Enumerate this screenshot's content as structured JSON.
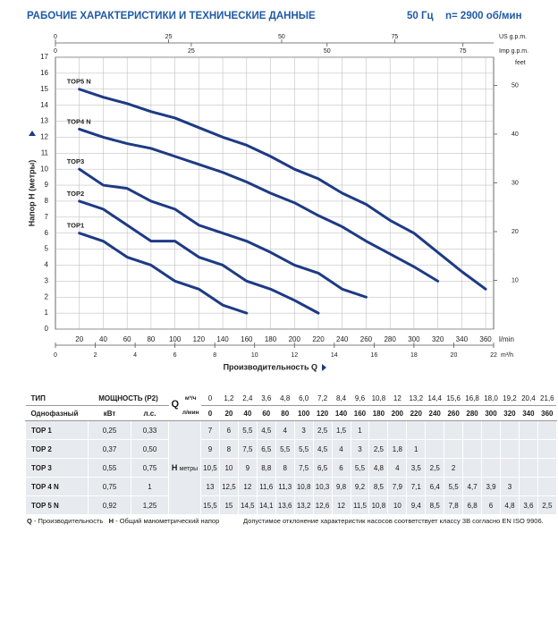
{
  "header": {
    "title": "РАБОЧИЕ ХАРАКТЕРИСТИКИ И ТЕХНИЧЕСКИЕ ДАННЫЕ",
    "frequency": "50 Гц",
    "speed": "n= 2900 об/мин"
  },
  "chart_data": {
    "type": "line",
    "x_label": "Производительность Q",
    "y_label": "Напор H (метры)",
    "x_unit": "l/min",
    "x": [
      20,
      40,
      60,
      80,
      100,
      120,
      140,
      160,
      180,
      200,
      220,
      240,
      260,
      280,
      300,
      320,
      340,
      360
    ],
    "xlim": [
      0,
      366.67
    ],
    "xticks": [
      20,
      40,
      60,
      80,
      100,
      120,
      140,
      160,
      180,
      200,
      220,
      240,
      260,
      280,
      300,
      320,
      340,
      360
    ],
    "ylim": [
      0,
      17
    ],
    "yticks": [
      0,
      1,
      2,
      3,
      4,
      5,
      6,
      7,
      8,
      9,
      10,
      11,
      12,
      13,
      14,
      15,
      16,
      17
    ],
    "grid": true,
    "series": [
      {
        "name": "TOP1",
        "color": "#1d3a84",
        "values": [
          6,
          5.5,
          4.5,
          4,
          3,
          2.5,
          1.5,
          1,
          null,
          null,
          null,
          null,
          null,
          null,
          null,
          null,
          null,
          null
        ]
      },
      {
        "name": "TOP2",
        "color": "#1d3a84",
        "values": [
          8,
          7.5,
          6.5,
          5.5,
          5.5,
          4.5,
          4,
          3,
          2.5,
          1.8,
          1,
          null,
          null,
          null,
          null,
          null,
          null,
          null
        ]
      },
      {
        "name": "TOP3",
        "color": "#1d3a84",
        "values": [
          10,
          9,
          8.8,
          8,
          7.5,
          6.5,
          6,
          5.5,
          4.8,
          4,
          3.5,
          2.5,
          2,
          null,
          null,
          null,
          null,
          null
        ]
      },
      {
        "name": "TOP4 N",
        "color": "#1d3a84",
        "values": [
          12.5,
          12,
          11.6,
          11.3,
          10.8,
          10.3,
          9.8,
          9.2,
          8.5,
          7.9,
          7.1,
          6.4,
          5.5,
          4.7,
          3.9,
          3,
          null,
          null
        ]
      },
      {
        "name": "TOP5 N",
        "color": "#1d3a84",
        "values": [
          15,
          14.5,
          14.1,
          13.6,
          13.2,
          12.6,
          12,
          11.5,
          10.8,
          10,
          9.4,
          8.5,
          7.8,
          6.8,
          6,
          4.8,
          3.6,
          2.5
        ]
      }
    ],
    "m3h_axis": {
      "label": "m³/h",
      "lim": [
        0,
        22
      ],
      "ticks": [
        0,
        2,
        4,
        6,
        8,
        10,
        12,
        14,
        16,
        18,
        20,
        22
      ]
    },
    "us_gpm_axis": {
      "label": "US g.p.m.",
      "lim": [
        0,
        96.86
      ],
      "ticks": [
        0,
        25,
        50,
        75
      ]
    },
    "imp_gpm_axis": {
      "label": "Imp g.p.m.",
      "lim": [
        0,
        80.65
      ],
      "ticks": [
        0,
        25,
        50,
        75
      ]
    },
    "feet_axis": {
      "label": "feet",
      "lim": [
        0,
        55.77
      ],
      "ticks": [
        10,
        20,
        30,
        40,
        50
      ]
    }
  },
  "table": {
    "type_header": "ТИП",
    "power_header": "МОЩНОСТЬ (P2)",
    "q_label": "Q",
    "q_unit_m3h": "м³/ч",
    "q_unit_lmin": "л/мин",
    "phase_label": "Однофазный",
    "kw": "кВт",
    "hp": "л.с.",
    "h_label": "H",
    "h_unit": "метры",
    "q_m3h": [
      "0",
      "1,2",
      "2,4",
      "3,6",
      "4,8",
      "6,0",
      "7,2",
      "8,4",
      "9,6",
      "10,8",
      "12",
      "13,2",
      "14,4",
      "15,6",
      "16,8",
      "18,0",
      "19,2",
      "20,4",
      "21,6"
    ],
    "q_lmin": [
      "0",
      "20",
      "40",
      "60",
      "80",
      "100",
      "120",
      "140",
      "160",
      "180",
      "200",
      "220",
      "240",
      "260",
      "280",
      "300",
      "320",
      "340",
      "360"
    ],
    "rows": [
      {
        "model": "TOP 1",
        "kw": "0,25",
        "hp": "0,33",
        "h": [
          "7",
          "6",
          "5,5",
          "4,5",
          "4",
          "3",
          "2,5",
          "1,5",
          "1"
        ]
      },
      {
        "model": "TOP 2",
        "kw": "0,37",
        "hp": "0,50",
        "h": [
          "9",
          "8",
          "7,5",
          "6,5",
          "5,5",
          "5,5",
          "4,5",
          "4",
          "3",
          "2,5",
          "1,8",
          "1"
        ]
      },
      {
        "model": "TOP 3",
        "kw": "0,55",
        "hp": "0,75",
        "h": [
          "10,5",
          "10",
          "9",
          "8,8",
          "8",
          "7,5",
          "6,5",
          "6",
          "5,5",
          "4,8",
          "4",
          "3,5",
          "2,5",
          "2"
        ]
      },
      {
        "model": "TOP 4 N",
        "kw": "0,75",
        "hp": "1",
        "h": [
          "13",
          "12,5",
          "12",
          "11,6",
          "11,3",
          "10,8",
          "10,3",
          "9,8",
          "9,2",
          "8,5",
          "7,9",
          "7,1",
          "6,4",
          "5,5",
          "4,7",
          "3,9",
          "3"
        ]
      },
      {
        "model": "TOP 5 N",
        "kw": "0,92",
        "hp": "1,25",
        "h": [
          "15,5",
          "15",
          "14,5",
          "14,1",
          "13,6",
          "13,2",
          "12,6",
          "12",
          "11,5",
          "10,8",
          "10",
          "9,4",
          "8,5",
          "7,8",
          "6,8",
          "6",
          "4,8",
          "3,6",
          "2,5"
        ]
      }
    ]
  },
  "footer": {
    "q_key": "Q",
    "q_text": "- Производительность",
    "h_key": "H",
    "h_text": "- Общий манометрический напор",
    "tolerance": "Допустимое отклонение характеристик насосов соответствует классу 3B согласно EN ISO 9906."
  }
}
